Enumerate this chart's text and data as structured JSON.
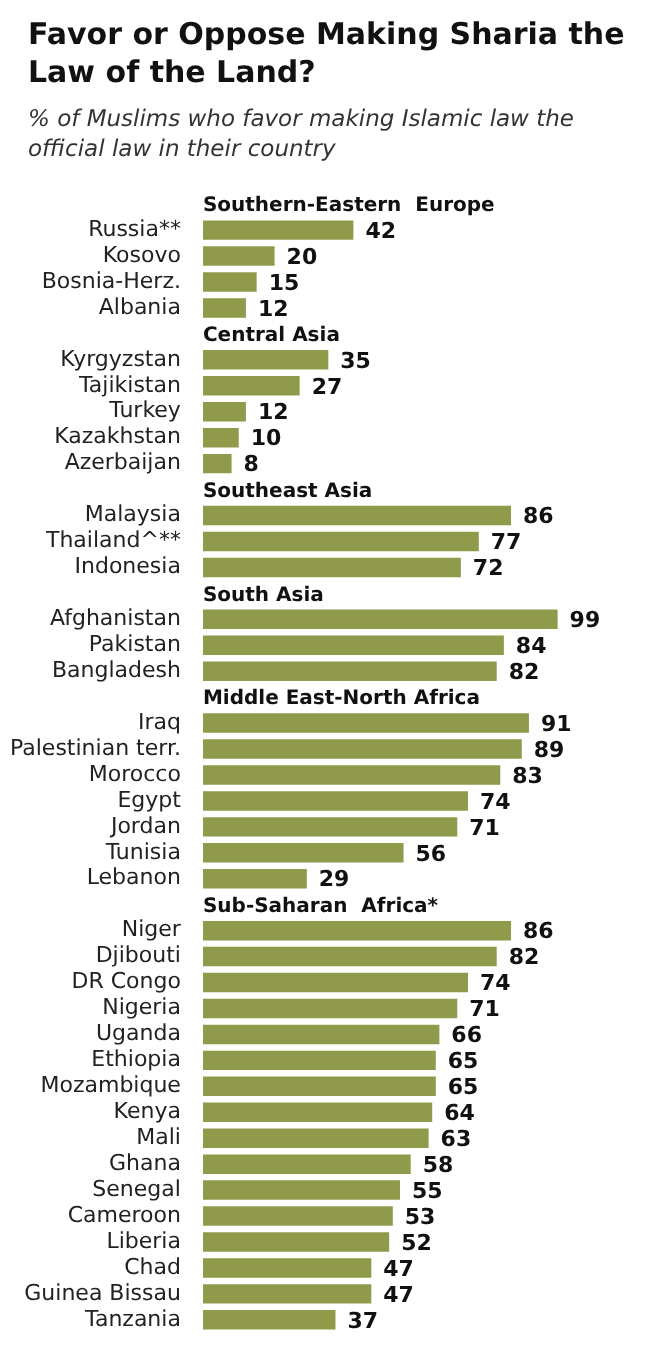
{
  "chart_data": {
    "type": "bar",
    "orientation": "horizontal",
    "title": "Favor or Oppose Making Sharia the Law of the Land?",
    "subtitle": "% of Muslims who favor making Islamic law the official law in their country",
    "categories": [
      "Southern-Eastern  Europe",
      "Russia**",
      "Kosovo",
      "Bosnia-Herz.",
      "Albania",
      "Central Asia",
      "Kyrgyzstan",
      "Tajikistan",
      "Turkey",
      "Kazakhstan",
      "Azerbaijan",
      "Southeast Asia",
      "Malaysia",
      "Thailand^**",
      "Indonesia",
      "South Asia",
      "Afghanistan",
      "Pakistan",
      "Bangladesh",
      "Middle East-North Africa",
      "Iraq",
      "Palestinian terr.",
      "Morocco",
      "Egypt",
      "Jordan",
      "Tunisia",
      "Lebanon",
      "Sub-Saharan  Africa*",
      "Niger",
      "Djibouti",
      "DR Congo",
      "Nigeria",
      "Uganda",
      "Ethiopia",
      "Mozambique",
      "Kenya",
      "Mali",
      "Ghana",
      "Senegal",
      "Cameroon",
      "Liberia",
      "Chad",
      "Guinea Bissau",
      "Tanzania"
    ],
    "values": [
      null,
      42,
      20,
      15,
      12,
      null,
      35,
      27,
      12,
      10,
      8,
      null,
      86,
      77,
      72,
      null,
      99,
      84,
      82,
      null,
      91,
      89,
      83,
      74,
      71,
      56,
      29,
      null,
      86,
      82,
      74,
      71,
      66,
      65,
      65,
      64,
      63,
      58,
      55,
      53,
      52,
      47,
      47,
      37
    ],
    "color": "#8f9a4a",
    "data_labels": true,
    "legend": false,
    "grid": false
  }
}
